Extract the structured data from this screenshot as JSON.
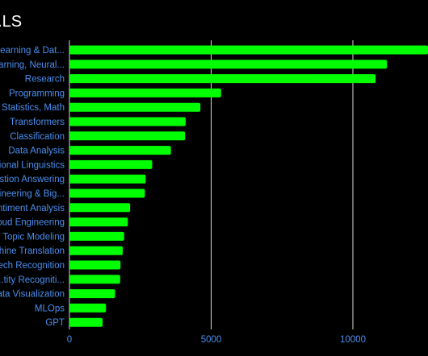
{
  "chart_data": {
    "type": "bar",
    "orientation": "horizontal",
    "title": "...LS",
    "categories": [
      "...earning & Dat...",
      "...arning, Neural...",
      "Research",
      "Programming",
      "Statistics, Math",
      "Transformers",
      "Classification",
      "Data Analysis",
      "...ional Linguistics",
      "...stion Answering",
      "...ineering & Big...",
      "...ntiment Analysis",
      "...oud Engineering",
      "Topic Modeling",
      "...hine Translation",
      "...ech Recognition",
      "...tity Recogniti...",
      "...ata Visualization",
      "MLOps",
      "GPT"
    ],
    "values": [
      12800,
      11200,
      10800,
      5350,
      4620,
      4100,
      4080,
      3580,
      2920,
      2690,
      2660,
      2140,
      2060,
      1930,
      1880,
      1800,
      1790,
      1610,
      1290,
      1170
    ],
    "xticks": [
      0,
      5000,
      10000
    ],
    "xlim": [
      0,
      12650
    ],
    "grid": true,
    "bar_color": "#00ff00",
    "label_color": "#4a8ff0",
    "grid_color": "#d8d8d8",
    "background": "#000000"
  }
}
